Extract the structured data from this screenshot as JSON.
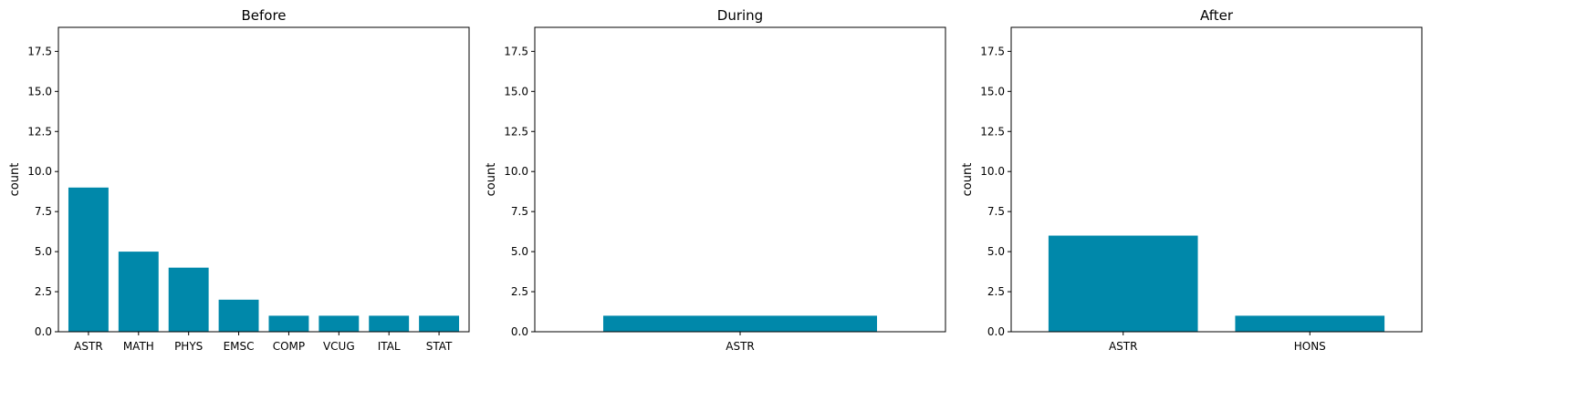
{
  "chart_data": [
    {
      "type": "bar",
      "title": "Before",
      "xlabel": "",
      "ylabel": "count",
      "categories": [
        "ASTR",
        "MATH",
        "PHYS",
        "EMSC",
        "COMP",
        "VCUG",
        "ITAL",
        "STAT"
      ],
      "values": [
        9,
        5,
        4,
        2,
        1,
        1,
        1,
        1
      ],
      "ylim": [
        0,
        19
      ],
      "yticks": [
        "0.0",
        "2.5",
        "5.0",
        "7.5",
        "10.0",
        "12.5",
        "15.0",
        "17.5"
      ],
      "color": "#0088aa",
      "grid": false,
      "legend": "none"
    },
    {
      "type": "bar",
      "title": "During",
      "xlabel": "",
      "ylabel": "count",
      "categories": [
        "ASTR"
      ],
      "values": [
        1
      ],
      "ylim": [
        0,
        19
      ],
      "yticks": [
        "0.0",
        "2.5",
        "5.0",
        "7.5",
        "10.0",
        "12.5",
        "15.0",
        "17.5"
      ],
      "color": "#0088aa",
      "grid": false,
      "legend": "none"
    },
    {
      "type": "bar",
      "title": "After",
      "xlabel": "",
      "ylabel": "count",
      "categories": [
        "ASTR",
        "HONS"
      ],
      "values": [
        6,
        1
      ],
      "ylim": [
        0,
        19
      ],
      "yticks": [
        "0.0",
        "2.5",
        "5.0",
        "7.5",
        "10.0",
        "12.5",
        "15.0",
        "17.5"
      ],
      "color": "#0088aa",
      "grid": false,
      "legend": "none"
    }
  ]
}
